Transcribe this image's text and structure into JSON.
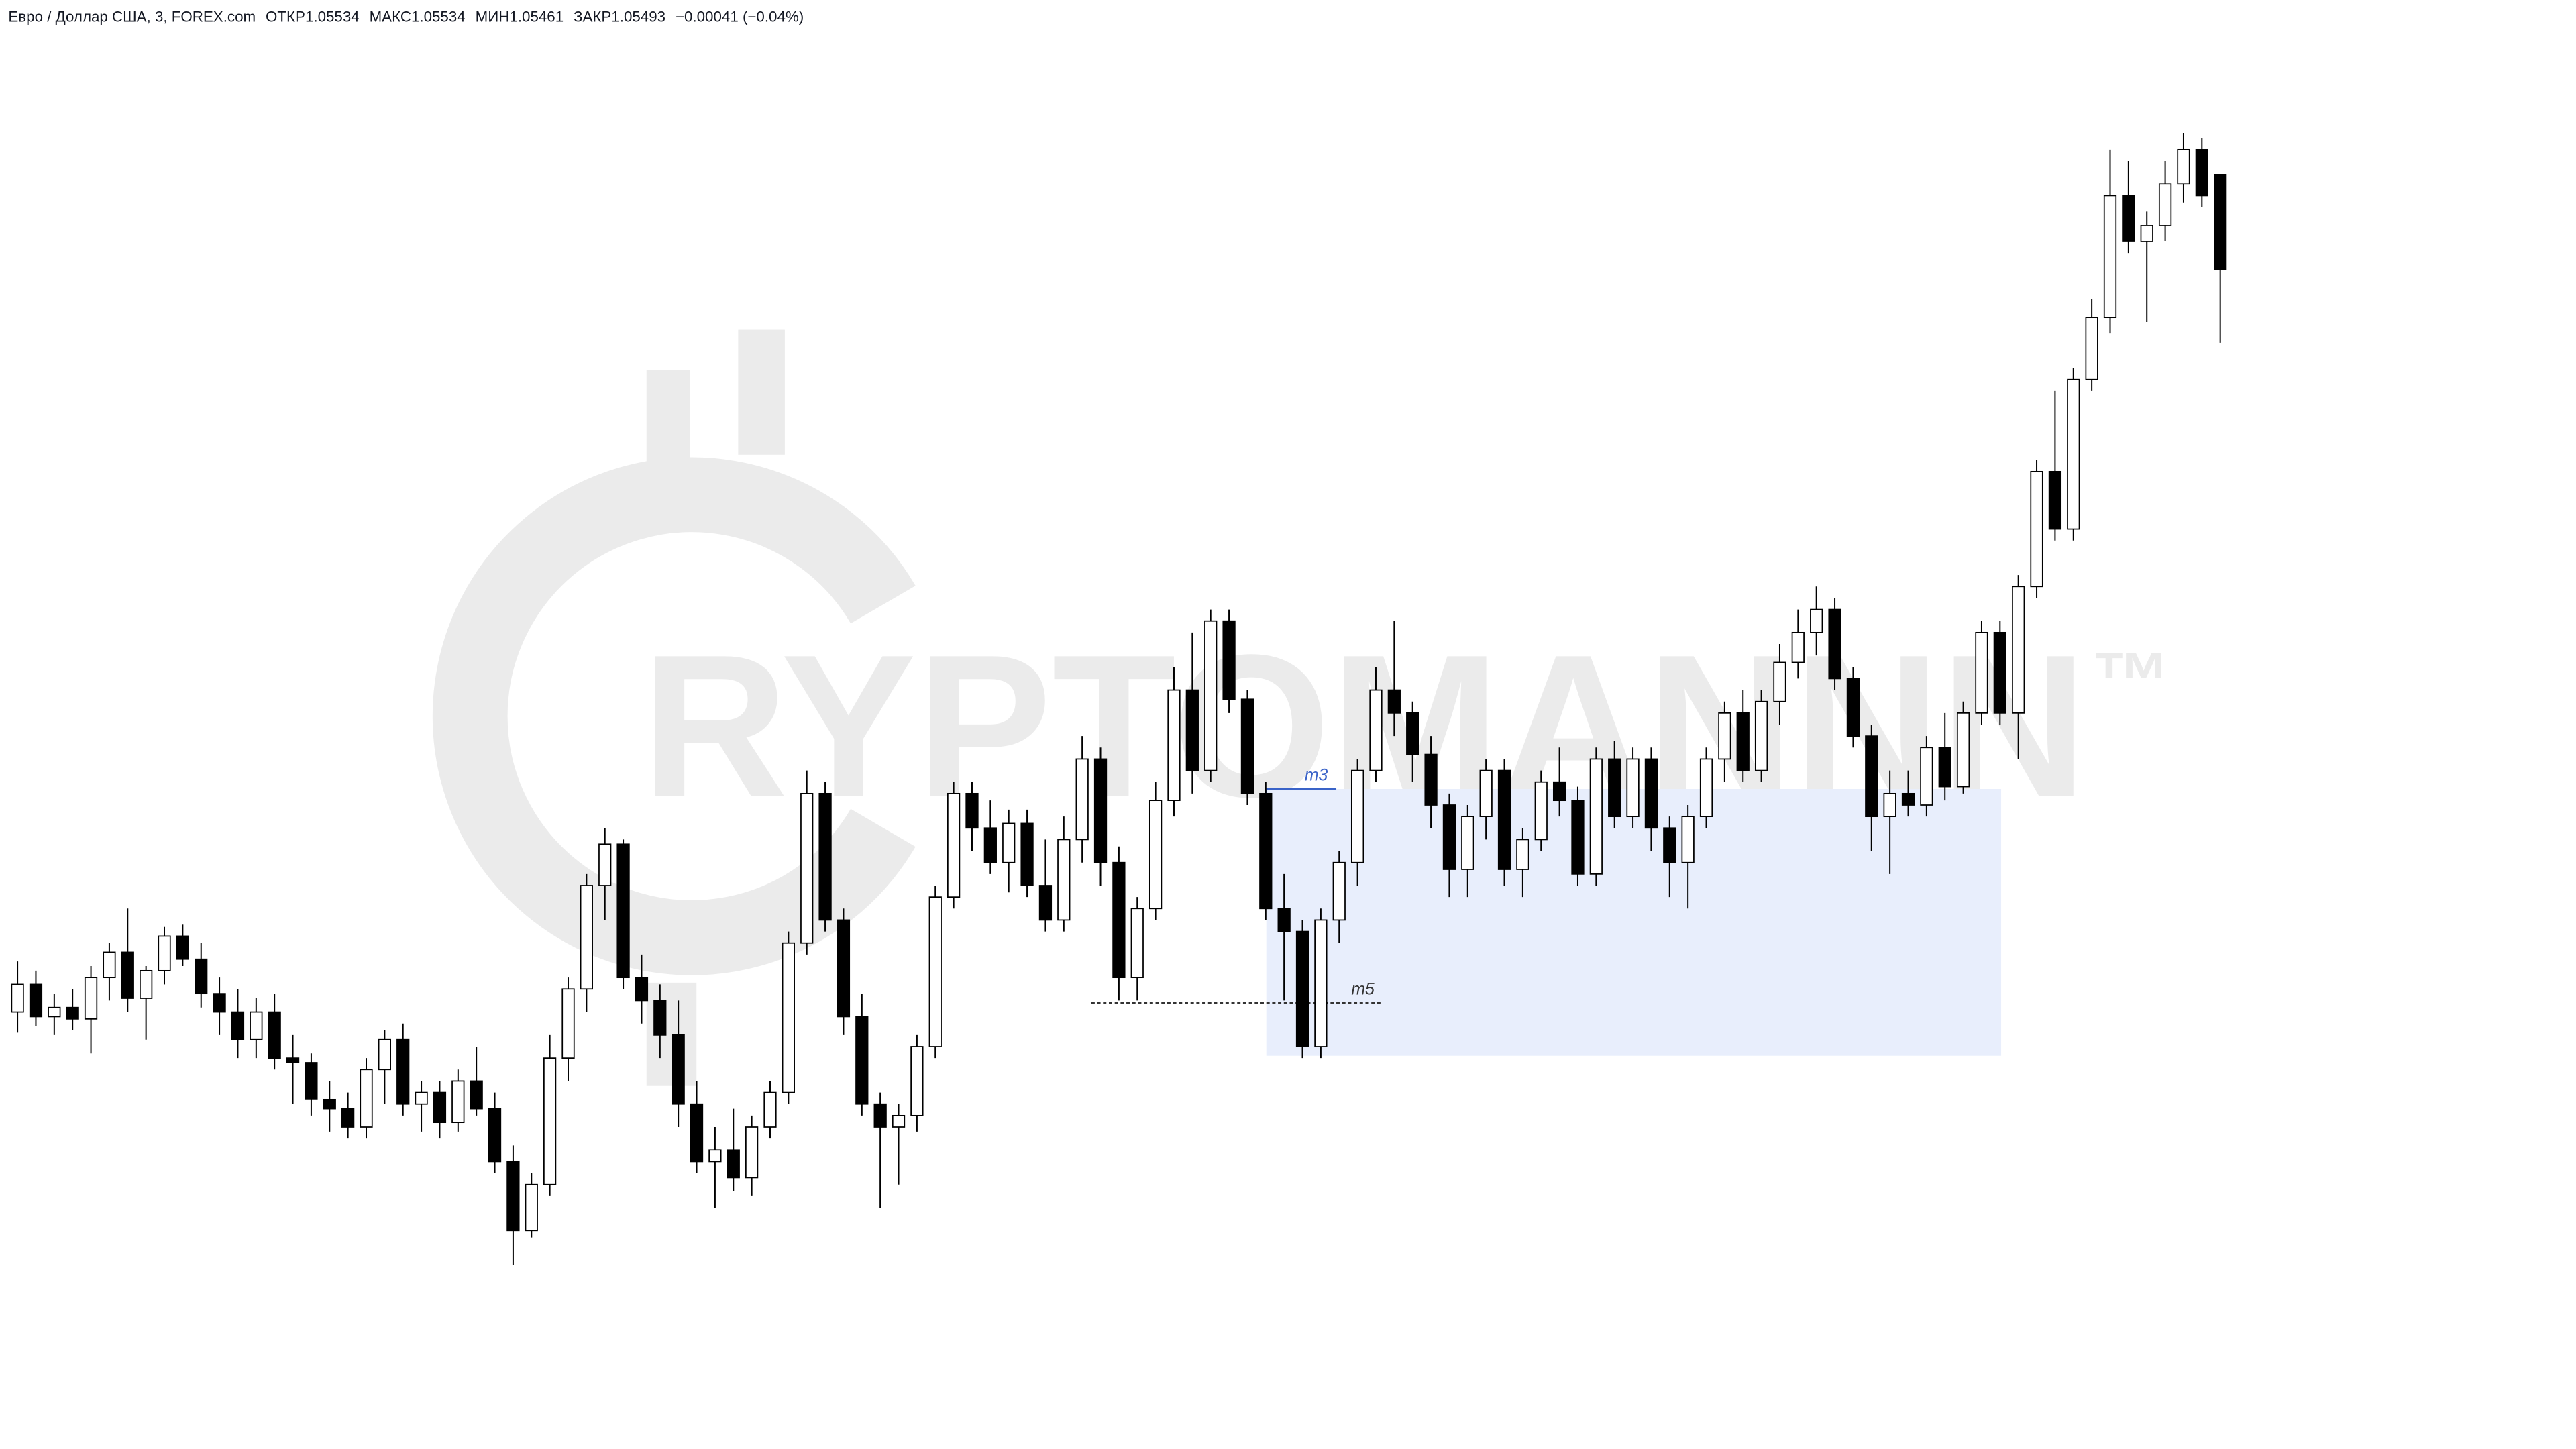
{
  "header": {
    "symbol": "Евро / Доллар США, 3, FOREX.com",
    "open_label": "ОТКР",
    "open": 1.05534,
    "high_label": "МАКС",
    "high": 1.05534,
    "low_label": "МИН",
    "low": 1.05461,
    "close_label": "ЗАКР",
    "close": 1.05493,
    "change": "−0.00041 (−0.04%)"
  },
  "watermark": "RYPTOMANNN",
  "watermark_mark": "™",
  "chart_data": {
    "type": "candlestick",
    "ylim": [
      1.0498,
      1.0561
    ],
    "up_color": "#ffffff",
    "down_color": "#000000",
    "border_color": "#000000",
    "zone": {
      "low": 1.05151,
      "high": 1.05267,
      "color": "#e8eefc"
    },
    "annotations": [
      {
        "text": "m3",
        "value": 1.05267,
        "color": "#3a63c8"
      },
      {
        "text": "m5",
        "value": 1.05174,
        "color": "#333333"
      }
    ],
    "candles": [
      [
        1.0517,
        1.05192,
        1.05161,
        1.05182
      ],
      [
        1.05182,
        1.05188,
        1.05164,
        1.05168
      ],
      [
        1.05168,
        1.05178,
        1.0516,
        1.05172
      ],
      [
        1.05172,
        1.0518,
        1.05162,
        1.05167
      ],
      [
        1.05167,
        1.0519,
        1.05152,
        1.05185
      ],
      [
        1.05185,
        1.052,
        1.05175,
        1.05196
      ],
      [
        1.05196,
        1.05215,
        1.0517,
        1.05176
      ],
      [
        1.05176,
        1.0519,
        1.05158,
        1.05188
      ],
      [
        1.05188,
        1.05207,
        1.05182,
        1.05203
      ],
      [
        1.05203,
        1.05208,
        1.0519,
        1.05193
      ],
      [
        1.05193,
        1.052,
        1.05172,
        1.05178
      ],
      [
        1.05178,
        1.05185,
        1.0516,
        1.0517
      ],
      [
        1.0517,
        1.0518,
        1.0515,
        1.05158
      ],
      [
        1.05158,
        1.05176,
        1.0515,
        1.0517
      ],
      [
        1.0517,
        1.05178,
        1.05145,
        1.0515
      ],
      [
        1.0515,
        1.0516,
        1.0513,
        1.05148
      ],
      [
        1.05148,
        1.05152,
        1.05125,
        1.05132
      ],
      [
        1.05132,
        1.0514,
        1.05118,
        1.05128
      ],
      [
        1.05128,
        1.05135,
        1.05115,
        1.0512
      ],
      [
        1.0512,
        1.0515,
        1.05115,
        1.05145
      ],
      [
        1.05145,
        1.05162,
        1.0513,
        1.05158
      ],
      [
        1.05158,
        1.05165,
        1.05125,
        1.0513
      ],
      [
        1.0513,
        1.0514,
        1.05118,
        1.05135
      ],
      [
        1.05135,
        1.0514,
        1.05115,
        1.05122
      ],
      [
        1.05122,
        1.05145,
        1.05118,
        1.0514
      ],
      [
        1.0514,
        1.05155,
        1.05125,
        1.05128
      ],
      [
        1.05128,
        1.05135,
        1.051,
        1.05105
      ],
      [
        1.05105,
        1.05112,
        1.0506,
        1.05075
      ],
      [
        1.05075,
        1.051,
        1.05072,
        1.05095
      ],
      [
        1.05095,
        1.0516,
        1.0509,
        1.0515
      ],
      [
        1.0515,
        1.05185,
        1.0514,
        1.0518
      ],
      [
        1.0518,
        1.0523,
        1.0517,
        1.05225
      ],
      [
        1.05225,
        1.0525,
        1.0521,
        1.05243
      ],
      [
        1.05243,
        1.05245,
        1.0518,
        1.05185
      ],
      [
        1.05185,
        1.05195,
        1.05165,
        1.05175
      ],
      [
        1.05175,
        1.05182,
        1.0515,
        1.0516
      ],
      [
        1.0516,
        1.05175,
        1.0512,
        1.0513
      ],
      [
        1.0513,
        1.0514,
        1.051,
        1.05105
      ],
      [
        1.05105,
        1.0512,
        1.05085,
        1.0511
      ],
      [
        1.0511,
        1.05128,
        1.05092,
        1.05098
      ],
      [
        1.05098,
        1.05125,
        1.0509,
        1.0512
      ],
      [
        1.0512,
        1.0514,
        1.05115,
        1.05135
      ],
      [
        1.05135,
        1.05205,
        1.0513,
        1.052
      ],
      [
        1.052,
        1.05275,
        1.05195,
        1.05265
      ],
      [
        1.05265,
        1.0527,
        1.05205,
        1.0521
      ],
      [
        1.0521,
        1.05215,
        1.0516,
        1.05168
      ],
      [
        1.05168,
        1.05178,
        1.05125,
        1.0513
      ],
      [
        1.0513,
        1.05135,
        1.05085,
        1.0512
      ],
      [
        1.0512,
        1.0513,
        1.05095,
        1.05125
      ],
      [
        1.05125,
        1.0516,
        1.05118,
        1.05155
      ],
      [
        1.05155,
        1.05225,
        1.0515,
        1.0522
      ],
      [
        1.0522,
        1.0527,
        1.05215,
        1.05265
      ],
      [
        1.05265,
        1.0527,
        1.0524,
        1.0525
      ],
      [
        1.0525,
        1.05262,
        1.0523,
        1.05235
      ],
      [
        1.05235,
        1.05258,
        1.05222,
        1.05252
      ],
      [
        1.05252,
        1.05258,
        1.0522,
        1.05225
      ],
      [
        1.05225,
        1.05245,
        1.05205,
        1.0521
      ],
      [
        1.0521,
        1.05255,
        1.05205,
        1.05245
      ],
      [
        1.05245,
        1.0529,
        1.05235,
        1.0528
      ],
      [
        1.0528,
        1.05285,
        1.05225,
        1.05235
      ],
      [
        1.05235,
        1.05242,
        1.05175,
        1.05185
      ],
      [
        1.05185,
        1.0522,
        1.05175,
        1.05215
      ],
      [
        1.05215,
        1.0527,
        1.0521,
        1.05262
      ],
      [
        1.05262,
        1.0532,
        1.05255,
        1.0531
      ],
      [
        1.0531,
        1.05335,
        1.05265,
        1.05275
      ],
      [
        1.05275,
        1.05345,
        1.0527,
        1.0534
      ],
      [
        1.0534,
        1.05345,
        1.053,
        1.05306
      ],
      [
        1.05306,
        1.0531,
        1.0526,
        1.05265
      ],
      [
        1.05265,
        1.0527,
        1.0521,
        1.05215
      ],
      [
        1.05215,
        1.0523,
        1.05175,
        1.05205
      ],
      [
        1.05205,
        1.0521,
        1.0515,
        1.05155
      ],
      [
        1.05155,
        1.05215,
        1.0515,
        1.0521
      ],
      [
        1.0521,
        1.0524,
        1.052,
        1.05235
      ],
      [
        1.05235,
        1.0528,
        1.05225,
        1.05275
      ],
      [
        1.05275,
        1.0532,
        1.0527,
        1.0531
      ],
      [
        1.0531,
        1.0534,
        1.0529,
        1.053
      ],
      [
        1.053,
        1.05305,
        1.0527,
        1.05282
      ],
      [
        1.05282,
        1.0529,
        1.0525,
        1.0526
      ],
      [
        1.0526,
        1.05265,
        1.0522,
        1.05232
      ],
      [
        1.05232,
        1.0526,
        1.0522,
        1.05255
      ],
      [
        1.05255,
        1.0528,
        1.05245,
        1.05275
      ],
      [
        1.05275,
        1.0528,
        1.05225,
        1.05232
      ],
      [
        1.05232,
        1.0525,
        1.0522,
        1.05245
      ],
      [
        1.05245,
        1.05275,
        1.0524,
        1.0527
      ],
      [
        1.0527,
        1.05285,
        1.05255,
        1.05262
      ],
      [
        1.05262,
        1.05268,
        1.05225,
        1.0523
      ],
      [
        1.0523,
        1.05285,
        1.05225,
        1.0528
      ],
      [
        1.0528,
        1.05288,
        1.0525,
        1.05255
      ],
      [
        1.05255,
        1.05285,
        1.0525,
        1.0528
      ],
      [
        1.0528,
        1.05285,
        1.0524,
        1.0525
      ],
      [
        1.0525,
        1.05255,
        1.0522,
        1.05235
      ],
      [
        1.05235,
        1.0526,
        1.05215,
        1.05255
      ],
      [
        1.05255,
        1.05285,
        1.0525,
        1.0528
      ],
      [
        1.0528,
        1.05305,
        1.0527,
        1.053
      ],
      [
        1.053,
        1.0531,
        1.0527,
        1.05275
      ],
      [
        1.05275,
        1.0531,
        1.0527,
        1.05305
      ],
      [
        1.05305,
        1.0533,
        1.05295,
        1.05322
      ],
      [
        1.05322,
        1.05345,
        1.05315,
        1.05335
      ],
      [
        1.05335,
        1.05355,
        1.05325,
        1.05345
      ],
      [
        1.05345,
        1.0535,
        1.0531,
        1.05315
      ],
      [
        1.05315,
        1.0532,
        1.05285,
        1.0529
      ],
      [
        1.0529,
        1.05295,
        1.0524,
        1.05255
      ],
      [
        1.05255,
        1.05275,
        1.0523,
        1.05265
      ],
      [
        1.05265,
        1.05275,
        1.05255,
        1.0526
      ],
      [
        1.0526,
        1.0529,
        1.05255,
        1.05285
      ],
      [
        1.05285,
        1.053,
        1.05262,
        1.05268
      ],
      [
        1.05268,
        1.05305,
        1.05265,
        1.053
      ],
      [
        1.053,
        1.0534,
        1.05295,
        1.05335
      ],
      [
        1.05335,
        1.0534,
        1.05295,
        1.053
      ],
      [
        1.053,
        1.0536,
        1.0528,
        1.05355
      ],
      [
        1.05355,
        1.0541,
        1.0535,
        1.05405
      ],
      [
        1.05405,
        1.0544,
        1.05375,
        1.0538
      ],
      [
        1.0538,
        1.0545,
        1.05375,
        1.05445
      ],
      [
        1.05445,
        1.0548,
        1.0544,
        1.05472
      ],
      [
        1.05472,
        1.05545,
        1.05465,
        1.05525
      ],
      [
        1.05525,
        1.0554,
        1.055,
        1.05505
      ],
      [
        1.05505,
        1.05518,
        1.0547,
        1.05512
      ],
      [
        1.05512,
        1.0554,
        1.05505,
        1.0553
      ],
      [
        1.0553,
        1.05552,
        1.05522,
        1.05545
      ],
      [
        1.05545,
        1.0555,
        1.0552,
        1.05525
      ],
      [
        1.05534,
        1.05534,
        1.05461,
        1.05493
      ]
    ]
  }
}
